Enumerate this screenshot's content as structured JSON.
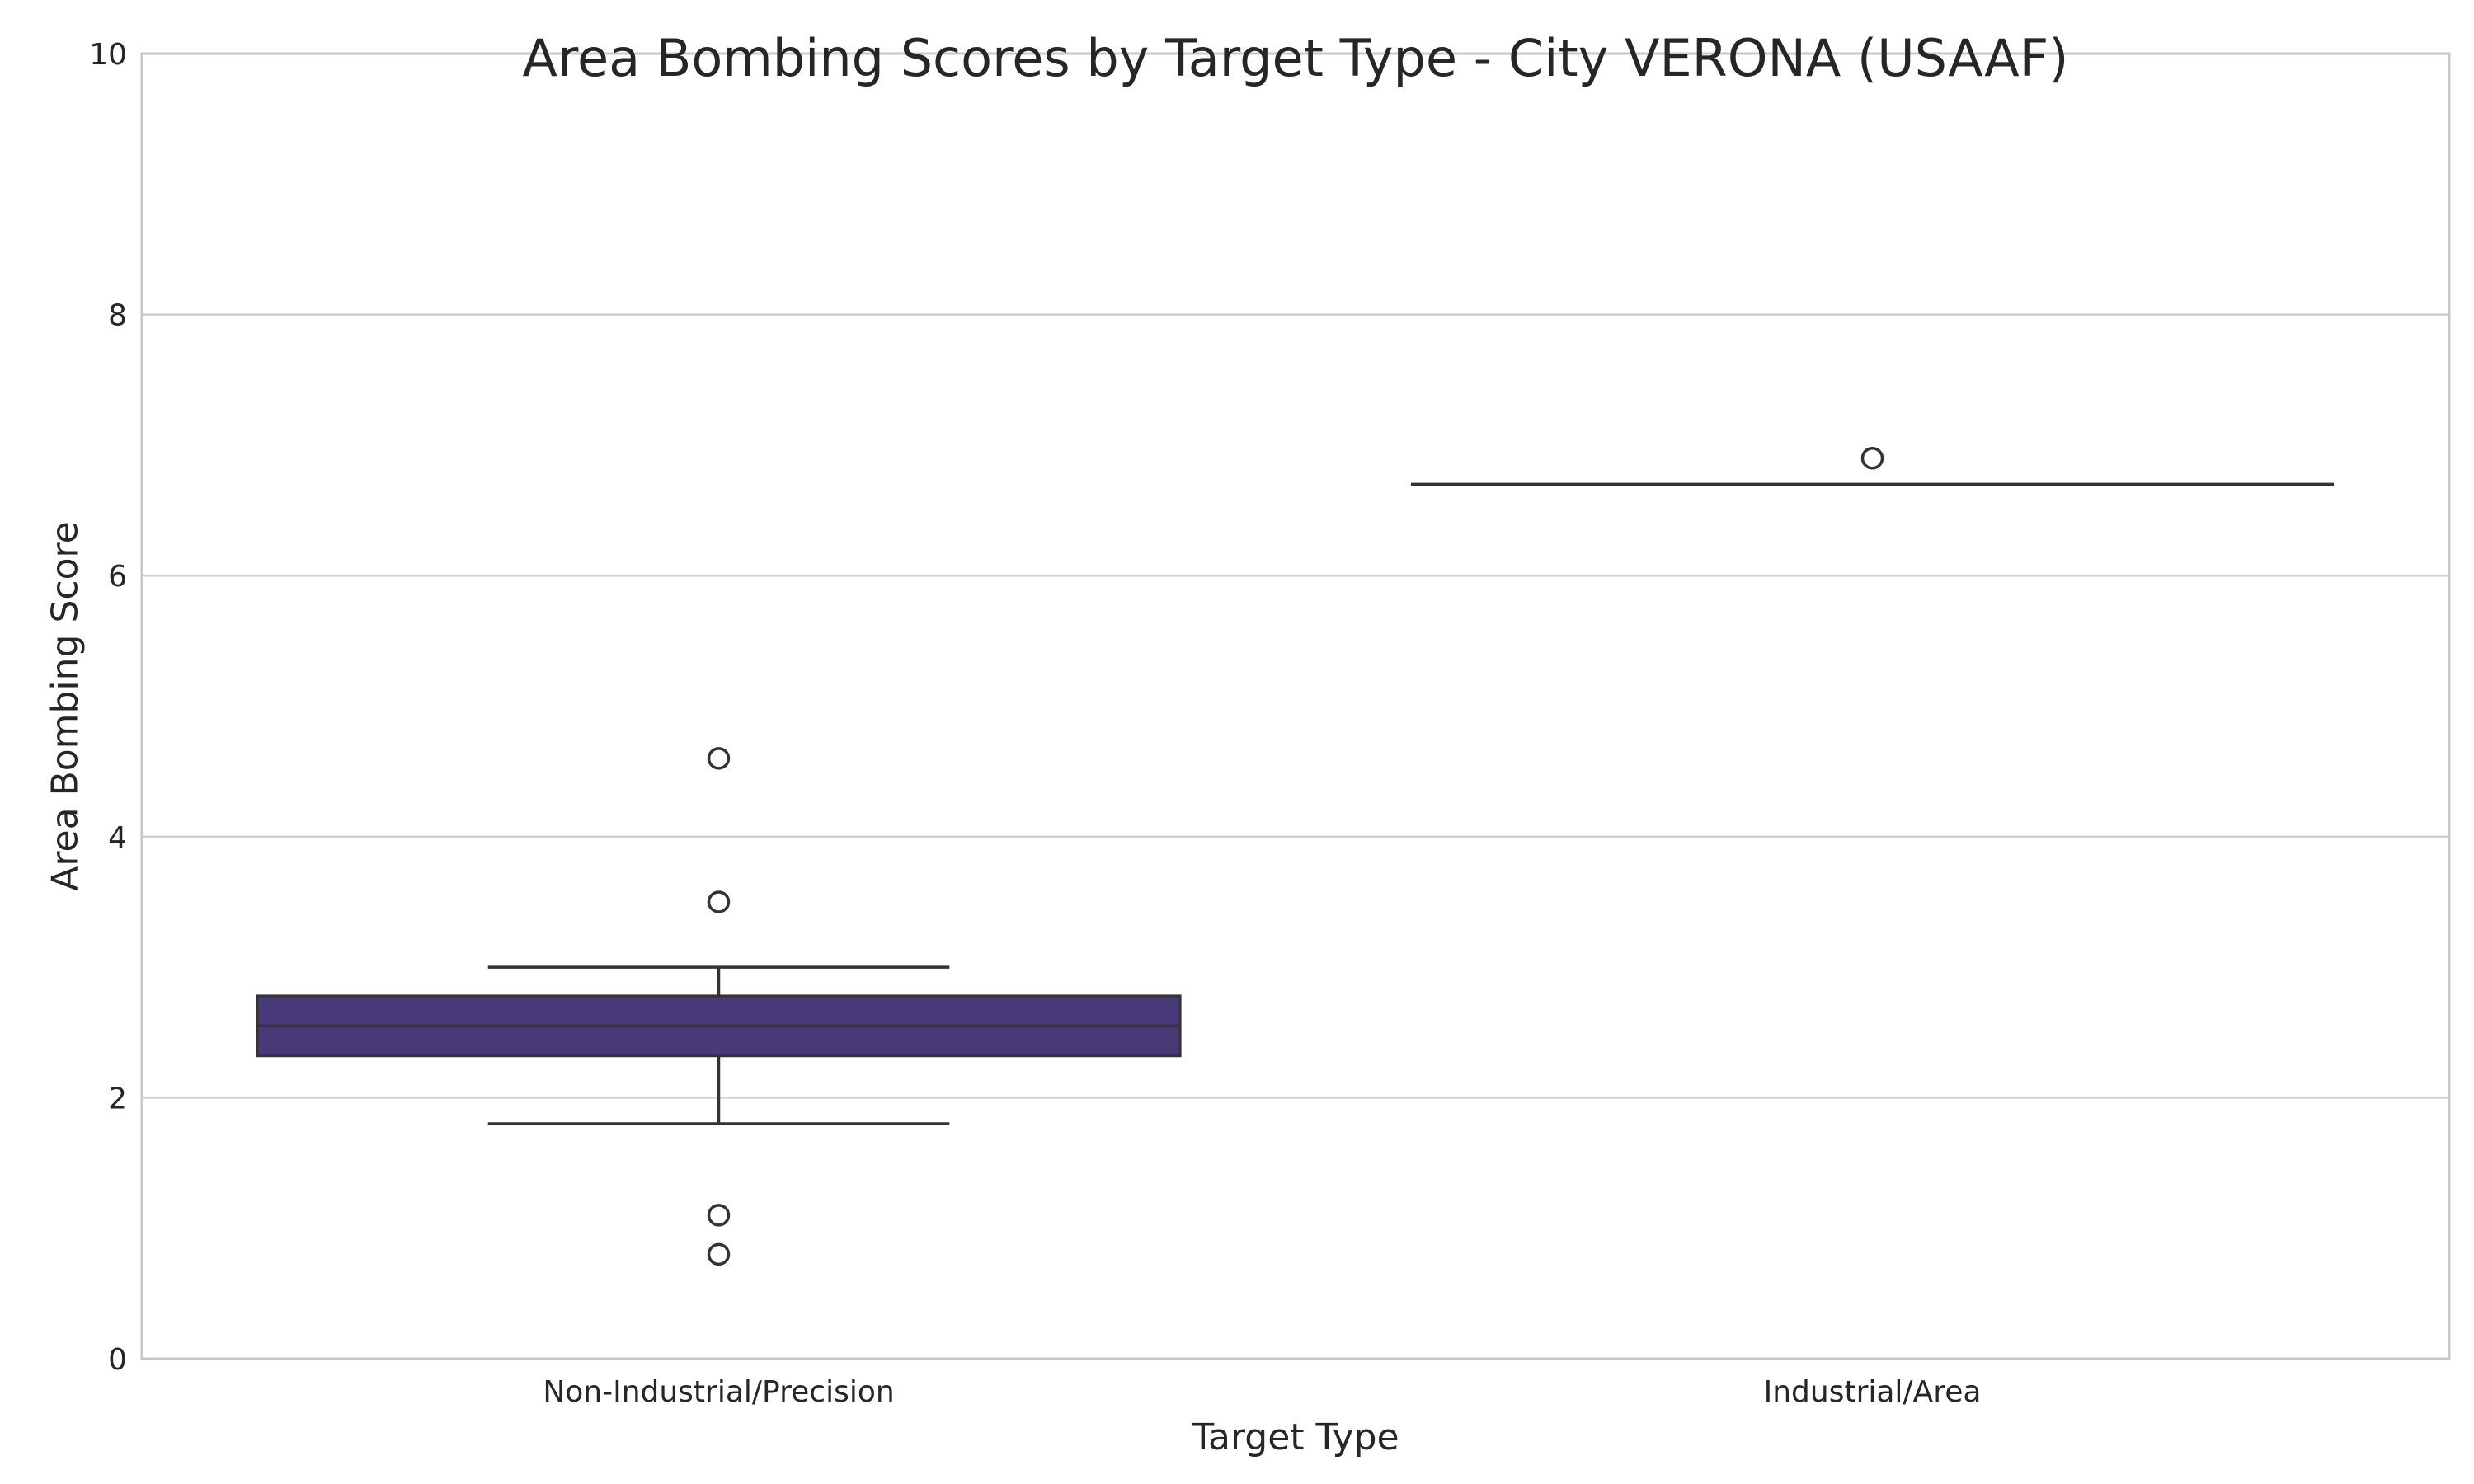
{
  "chart_data": {
    "type": "box",
    "title": "Area Bombing Scores by Target Type - City VERONA (USAAF)",
    "xlabel": "Target Type",
    "ylabel": "Area Bombing Score",
    "ylim": [
      0,
      10
    ],
    "yticks": [
      0,
      2,
      4,
      6,
      8,
      10
    ],
    "grid": true,
    "box_color": "#483a78",
    "categories": [
      "Non-Industrial/Precision",
      "Industrial/Area"
    ],
    "boxes": [
      {
        "category": "Non-Industrial/Precision",
        "whisker_low": 1.8,
        "q1": 2.32,
        "median": 2.55,
        "q3": 2.78,
        "whisker_high": 3.0,
        "outliers": [
          4.6,
          3.5,
          1.1,
          0.8
        ]
      },
      {
        "category": "Industrial/Area",
        "whisker_low": 6.7,
        "q1": 6.7,
        "median": 6.7,
        "q3": 6.7,
        "whisker_high": 6.7,
        "outliers": [
          6.9
        ]
      }
    ]
  }
}
